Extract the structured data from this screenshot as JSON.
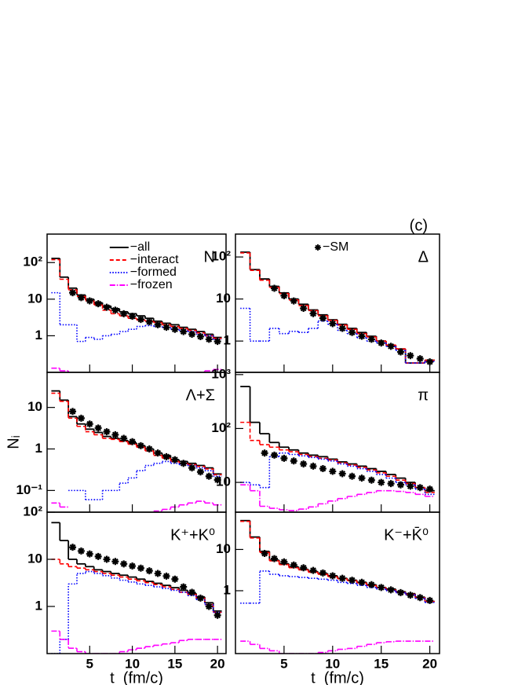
{
  "chart_data": [
    {
      "type": "histogram",
      "label": "N",
      "log_y": true,
      "legend": "upper-center",
      "bins": [
        0.5,
        1.5,
        2.5,
        3.5,
        4.5,
        5.5,
        6.5,
        7.5,
        8.5,
        9.5,
        10.5,
        11.5,
        12.5,
        13.5,
        14.5,
        15.5,
        16.5,
        17.5,
        18.5,
        19.5,
        20.5
      ],
      "xlim": [
        0,
        21
      ],
      "xticks": [
        5,
        10,
        15,
        20
      ],
      "ylim": [
        0.1,
        600
      ],
      "yticks": [
        1,
        10,
        {
          "value": 100,
          "label": "10²"
        }
      ],
      "series": [
        {
          "name": "−all",
          "color": "#000000",
          "dash": "solid",
          "values": [
            130,
            40,
            20,
            13,
            10,
            8,
            6.5,
            5.5,
            4.5,
            4,
            3.5,
            3,
            2.5,
            2.2,
            2,
            1.7,
            1.5,
            1.3,
            1.1,
            0.9
          ]
        },
        {
          "name": "−interact",
          "color": "#ff0000",
          "dash": "dashed",
          "values": [
            120,
            35,
            18,
            12,
            9,
            7,
            5,
            4,
            3.5,
            3,
            2.7,
            2.5,
            2.3,
            2,
            1.8,
            1.6,
            1.4,
            1.2,
            1,
            0.85
          ]
        },
        {
          "name": "−formed",
          "color": "#0000ff",
          "dash": "dotted",
          "values": [
            15,
            2,
            2,
            0.7,
            0.9,
            0.8,
            1,
            1.1,
            1.3,
            1.5,
            1.8,
            1.9,
            1.8,
            1.7,
            1.5,
            1.4,
            1.3,
            1.1,
            1,
            0.8
          ]
        },
        {
          "name": "−frozen",
          "color": "#ff00ff",
          "dash": "dashdot",
          "values": [
            0.13,
            0.11,
            0.09,
            0.08,
            0.07,
            0.07,
            0.07,
            0.07,
            0.07,
            0.07,
            0.07,
            0.07,
            0.07,
            0.07,
            0.08,
            0.08,
            0.09,
            0.1,
            0.11,
            0.12
          ]
        },
        {
          "color": "#000000",
          "marker": "star",
          "values": [
            null,
            null,
            15,
            11,
            9,
            7.5,
            6,
            5,
            4,
            3.4,
            2.8,
            2.4,
            2,
            1.7,
            1.5,
            1.3,
            1.1,
            0.95,
            0.8,
            0.7
          ]
        }
      ]
    },
    {
      "type": "histogram",
      "label": "Δ",
      "log_y": true,
      "legend": "upper-center",
      "annotation": "(c)",
      "bins": [
        0.5,
        1.5,
        2.5,
        3.5,
        4.5,
        5.5,
        6.5,
        7.5,
        8.5,
        9.5,
        10.5,
        11.5,
        12.5,
        13.5,
        14.5,
        15.5,
        16.5,
        17.5,
        18.5,
        19.5,
        20.5
      ],
      "xlim": [
        0,
        21
      ],
      "xticks": [
        5,
        10,
        15,
        20
      ],
      "ylim": [
        0.18,
        350
      ],
      "yticks": [
        1,
        10,
        {
          "value": 100,
          "label": "10²"
        }
      ],
      "series": [
        {
          "color": "#000000",
          "dash": "solid",
          "values": [
            130,
            50,
            30,
            20,
            14,
            10,
            7.5,
            5.5,
            4.2,
            3.2,
            2.5,
            2,
            1.6,
            1.3,
            1,
            0.8,
            0.65,
            0.3,
            0.3,
            0.35
          ]
        },
        {
          "color": "#ff0000",
          "dash": "dashed",
          "values": [
            125,
            48,
            28,
            19,
            13.5,
            9.5,
            7,
            5.3,
            4,
            3.1,
            2.4,
            1.9,
            1.5,
            1.25,
            1,
            0.8,
            0.65,
            0.3,
            0.3,
            0.35
          ]
        },
        {
          "color": "#0000ff",
          "dash": "dotted",
          "values": [
            6,
            1,
            1,
            2,
            1.5,
            1.7,
            1.6,
            2,
            3,
            2.5,
            1.8,
            1.5,
            1.2,
            1,
            0.9,
            0.75,
            0.6,
            0.3,
            0.3,
            0.33
          ]
        },
        {
          "name": "−SM",
          "color": "#000000",
          "marker": "star",
          "values": [
            null,
            null,
            null,
            18,
            12,
            9,
            6,
            4.5,
            3.5,
            2.6,
            2,
            1.6,
            1.3,
            1.1,
            0.9,
            0.75,
            0.55,
            0.45,
            0.38,
            0.32
          ]
        }
      ]
    },
    {
      "type": "histogram",
      "label": "Λ+Σ",
      "log_y": true,
      "ylabel": "Nᵢ",
      "bins": [
        0.5,
        1.5,
        2.5,
        3.5,
        4.5,
        5.5,
        6.5,
        7.5,
        8.5,
        9.5,
        10.5,
        11.5,
        12.5,
        13.5,
        14.5,
        15.5,
        16.5,
        17.5,
        18.5,
        19.5,
        20.5
      ],
      "xlim": [
        0,
        21
      ],
      "xticks": [
        5,
        10,
        15,
        20
      ],
      "ylim": [
        0.03,
        70
      ],
      "yticks": [
        {
          "value": 0.1,
          "label": "10⁻¹"
        },
        1,
        10
      ],
      "series": [
        {
          "color": "#000000",
          "dash": "solid",
          "values": [
            25,
            15,
            6,
            4,
            3,
            2.5,
            2,
            1.8,
            1.6,
            1.4,
            1.2,
            1,
            0.8,
            0.7,
            0.55,
            0.5,
            0.45,
            0.4,
            0.35,
            0.25
          ]
        },
        {
          "color": "#ff0000",
          "dash": "dashed",
          "values": [
            22,
            14,
            5.5,
            3.5,
            2.6,
            2.2,
            1.8,
            1.7,
            1.5,
            1.3,
            1.1,
            0.9,
            0.7,
            0.6,
            0.5,
            0.45,
            0.42,
            0.38,
            0.33,
            0.24
          ]
        },
        {
          "color": "#0000ff",
          "dash": "dotted",
          "values": [
            null,
            null,
            0.1,
            0.1,
            0.06,
            0.06,
            0.1,
            0.1,
            0.15,
            0.2,
            0.3,
            0.4,
            0.45,
            0.5,
            0.45,
            0.42,
            0.4,
            0.35,
            0.3,
            0.22
          ]
        },
        {
          "color": "#ff00ff",
          "dash": "dashdot",
          "values": [
            0.05,
            0.04,
            null,
            null,
            null,
            null,
            null,
            null,
            null,
            null,
            null,
            null,
            0.032,
            0.035,
            0.04,
            0.045,
            0.05,
            0.055,
            0.05,
            0.045
          ]
        },
        {
          "color": "#000000",
          "marker": "star",
          "values": [
            null,
            null,
            8,
            5.5,
            4,
            3.2,
            2.6,
            2.2,
            1.8,
            1.5,
            1.2,
            1,
            0.8,
            0.65,
            0.55,
            0.45,
            0.35,
            0.28,
            0.22,
            0.18
          ]
        }
      ]
    },
    {
      "type": "histogram",
      "label": "π",
      "log_y": true,
      "bins": [
        0.5,
        1.5,
        2.5,
        3.5,
        4.5,
        5.5,
        6.5,
        7.5,
        8.5,
        9.5,
        10.5,
        11.5,
        12.5,
        13.5,
        14.5,
        15.5,
        16.5,
        17.5,
        18.5,
        19.5,
        20.5
      ],
      "xlim": [
        0,
        21
      ],
      "xticks": [
        5,
        10,
        15,
        20
      ],
      "ylim": [
        2.8,
        1100
      ],
      "yticks": [
        10,
        {
          "value": 100,
          "label": "10²"
        },
        {
          "value": 1000,
          "label": "10³"
        }
      ],
      "series": [
        {
          "color": "#000000",
          "dash": "solid",
          "values": [
            600,
            130,
            80,
            55,
            45,
            40,
            35,
            32,
            30,
            27,
            24,
            22,
            20,
            18,
            16,
            14,
            12,
            10,
            8,
            7
          ]
        },
        {
          "color": "#ff0000",
          "dash": "dashed",
          "values": [
            130,
            60,
            50,
            45,
            40,
            37,
            33,
            30,
            28,
            26,
            23,
            21,
            19,
            17,
            15,
            13,
            11,
            9.5,
            8,
            6.5
          ]
        },
        {
          "color": "#0000ff",
          "dash": "dotted",
          "values": [
            10,
            9,
            8,
            30,
            35,
            33,
            31,
            29,
            27,
            25,
            22,
            20,
            18,
            16,
            14,
            12,
            10,
            9,
            7.5,
            6
          ]
        },
        {
          "color": "#ff00ff",
          "dash": "dashdot",
          "values": [
            9,
            7,
            3.6,
            3.3,
            3.1,
            3,
            3.2,
            3.5,
            4,
            4.5,
            5,
            5.5,
            6,
            6.5,
            7,
            7,
            6.8,
            6.5,
            6,
            5.5
          ]
        },
        {
          "color": "#000000",
          "marker": "star",
          "values": [
            null,
            null,
            35,
            32,
            28,
            25,
            22,
            20,
            18,
            16,
            14.5,
            13,
            12,
            11,
            10,
            9.5,
            9,
            8.5,
            8,
            7.5
          ]
        }
      ]
    },
    {
      "type": "histogram",
      "label": "K⁺+K⁰",
      "log_y": true,
      "xlabel": "t  (fm/c)",
      "xtick_labels": true,
      "bins": [
        0.5,
        1.5,
        2.5,
        3.5,
        4.5,
        5.5,
        6.5,
        7.5,
        8.5,
        9.5,
        10.5,
        11.5,
        12.5,
        13.5,
        14.5,
        15.5,
        16.5,
        17.5,
        18.5,
        19.5,
        20.5
      ],
      "xlim": [
        0,
        21
      ],
      "xticks": [
        5,
        10,
        15,
        20
      ],
      "ylim": [
        0.1,
        100
      ],
      "yticks": [
        1,
        10,
        {
          "value": 100,
          "label": "10²"
        }
      ],
      "series": [
        {
          "color": "#000000",
          "dash": "solid",
          "values": [
            60,
            25,
            10,
            8,
            7,
            6,
            5.5,
            5,
            4.6,
            4.2,
            3.8,
            3.4,
            3.1,
            2.8,
            2.5,
            2.2,
            1.9,
            1.6,
            1.2,
            0.8
          ]
        },
        {
          "color": "#ff0000",
          "dash": "dashed",
          "values": [
            10,
            8,
            7,
            6.5,
            6,
            5.5,
            5,
            4.6,
            4.2,
            3.8,
            3.5,
            3.2,
            2.9,
            2.6,
            2.3,
            2,
            1.8,
            1.5,
            1.1,
            0.75
          ]
        },
        {
          "color": "#0000ff",
          "dash": "dotted",
          "values": [
            0.1,
            0.2,
            3,
            5,
            5.5,
            5,
            4.5,
            4,
            3.6,
            3.3,
            3,
            2.8,
            2.6,
            2.4,
            2.2,
            2,
            1.7,
            1.4,
            1.1,
            0.75
          ]
        },
        {
          "color": "#ff00ff",
          "dash": "dashdot",
          "values": [
            0.3,
            0.2,
            0.13,
            0.11,
            0.1,
            0.1,
            0.1,
            0.1,
            0.11,
            0.12,
            0.13,
            0.14,
            0.15,
            0.16,
            0.17,
            0.19,
            0.2,
            0.2,
            0.2,
            0.2
          ]
        },
        {
          "color": "#000000",
          "marker": "star",
          "values": [
            null,
            null,
            18,
            15,
            13,
            11.5,
            10,
            9,
            8,
            7.2,
            6.5,
            5.7,
            5,
            4.4,
            3.8,
            2.6,
            2,
            1.5,
            1,
            0.65
          ]
        }
      ]
    },
    {
      "type": "histogram",
      "label": "K⁻+K̄⁰",
      "log_y": true,
      "xlabel": "t  (fm/c)",
      "xtick_labels": true,
      "bins": [
        0.5,
        1.5,
        2.5,
        3.5,
        4.5,
        5.5,
        6.5,
        7.5,
        8.5,
        9.5,
        10.5,
        11.5,
        12.5,
        13.5,
        14.5,
        15.5,
        16.5,
        17.5,
        18.5,
        19.5,
        20.5
      ],
      "xlim": [
        0,
        21
      ],
      "xticks": [
        5,
        10,
        15,
        20
      ],
      "ylim": [
        0.03,
        80
      ],
      "yticks": [
        1,
        10
      ],
      "series": [
        {
          "color": "#000000",
          "dash": "solid",
          "values": [
            50,
            20,
            9,
            5.5,
            4.5,
            3.8,
            3.3,
            2.9,
            2.6,
            2.3,
            2,
            1.8,
            1.6,
            1.4,
            1.2,
            1.1,
            0.95,
            0.85,
            0.7,
            0.55
          ]
        },
        {
          "color": "#ff0000",
          "dash": "dashed",
          "values": [
            48,
            19,
            8.5,
            5.3,
            4.3,
            3.6,
            3.2,
            2.8,
            2.5,
            2.2,
            1.95,
            1.75,
            1.55,
            1.35,
            1.18,
            1.05,
            0.92,
            0.82,
            0.68,
            0.55
          ]
        },
        {
          "color": "#0000ff",
          "dash": "dotted",
          "values": [
            0.5,
            0.5,
            3,
            2.5,
            2.3,
            2.2,
            2.1,
            2,
            1.9,
            1.8,
            1.6,
            1.5,
            1.35,
            1.2,
            1.1,
            1,
            0.9,
            0.8,
            0.65,
            0.52
          ]
        },
        {
          "color": "#ff00ff",
          "dash": "dashdot",
          "values": [
            0.06,
            0.05,
            0.04,
            0.035,
            0.03,
            0.03,
            0.03,
            0.03,
            0.032,
            0.035,
            0.038,
            0.04,
            0.045,
            0.05,
            0.055,
            0.058,
            0.06,
            0.06,
            0.06,
            0.06
          ]
        },
        {
          "color": "#000000",
          "marker": "star",
          "values": [
            null,
            null,
            8,
            6,
            5,
            4.2,
            3.6,
            3.1,
            2.7,
            2.3,
            2,
            1.8,
            1.6,
            1.4,
            1.2,
            1.05,
            0.9,
            0.78,
            0.68,
            0.58
          ]
        }
      ]
    }
  ]
}
